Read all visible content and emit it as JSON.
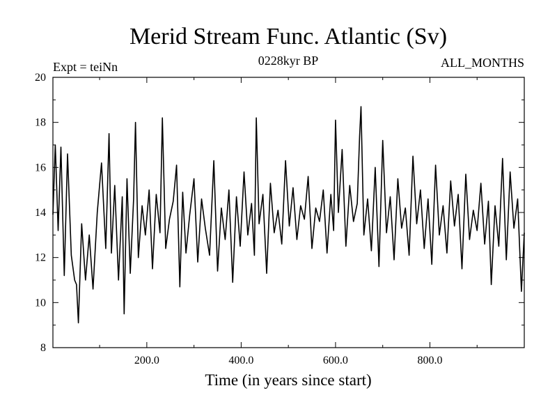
{
  "chart_data": {
    "type": "line",
    "title": "Merid Stream Func. Atlantic (Sv)",
    "subtitle_left": "Expt = teiNn",
    "subtitle_center": "0228kyr BP",
    "subtitle_right": "ALL_MONTHS",
    "xlabel": "Time (in years since start)",
    "ylabel": "",
    "xlim": [
      1,
      1000
    ],
    "ylim": [
      8,
      20
    ],
    "grid": false,
    "xticks": [
      {
        "value": 200,
        "label": "200.0"
      },
      {
        "value": 400,
        "label": "400.0"
      },
      {
        "value": 600,
        "label": "600.0"
      },
      {
        "value": 800,
        "label": "800.0"
      }
    ],
    "yticks": [
      {
        "value": 8,
        "label": "8"
      },
      {
        "value": 10,
        "label": "10"
      },
      {
        "value": 12,
        "label": "12"
      },
      {
        "value": 14,
        "label": "14"
      },
      {
        "value": 16,
        "label": "16"
      },
      {
        "value": 18,
        "label": "18"
      },
      {
        "value": 20,
        "label": "20"
      }
    ],
    "series": [
      {
        "name": "Merid Stream Func. Atlantic",
        "color": "#000000",
        "x": [
          1,
          6,
          12,
          18,
          25,
          32,
          40,
          47,
          51,
          55,
          62,
          70,
          78,
          86,
          95,
          104,
          113,
          120,
          125,
          132,
          140,
          148,
          152,
          158,
          165,
          172,
          176,
          182,
          190,
          197,
          205,
          212,
          220,
          228,
          233,
          240,
          248,
          256,
          263,
          270,
          276,
          283,
          291,
          300,
          308,
          316,
          324,
          333,
          342,
          350,
          358,
          366,
          374,
          382,
          390,
          398,
          406,
          414,
          422,
          428,
          432,
          438,
          446,
          454,
          462,
          470,
          478,
          486,
          494,
          502,
          510,
          518,
          526,
          534,
          542,
          550,
          558,
          566,
          574,
          582,
          590,
          596,
          600,
          606,
          614,
          622,
          630,
          638,
          646,
          651,
          654,
          660,
          668,
          676,
          684,
          692,
          700,
          708,
          716,
          724,
          732,
          740,
          748,
          756,
          764,
          772,
          780,
          788,
          796,
          804,
          812,
          820,
          828,
          836,
          844,
          852,
          860,
          868,
          876,
          884,
          892,
          900,
          908,
          916,
          924,
          930,
          938,
          946,
          954,
          962,
          970,
          978,
          986,
          994,
          1000
        ],
        "values": [
          13.9,
          17.0,
          13.2,
          16.9,
          11.2,
          16.6,
          12.1,
          11.0,
          10.8,
          9.1,
          13.5,
          11.0,
          13.0,
          10.6,
          14.0,
          16.2,
          12.4,
          17.5,
          12.2,
          15.2,
          11.0,
          14.7,
          9.5,
          15.5,
          11.3,
          14.6,
          18.0,
          12.0,
          14.3,
          13.0,
          15.0,
          11.5,
          14.8,
          13.1,
          18.2,
          12.4,
          13.7,
          14.5,
          16.1,
          10.7,
          14.9,
          12.2,
          13.9,
          15.5,
          11.8,
          14.6,
          13.3,
          12.1,
          16.3,
          11.4,
          14.2,
          12.8,
          15.0,
          10.9,
          14.7,
          12.5,
          15.8,
          13.0,
          14.4,
          12.1,
          18.2,
          13.5,
          14.8,
          11.3,
          15.3,
          13.1,
          14.1,
          12.6,
          16.3,
          13.4,
          15.1,
          12.8,
          14.3,
          13.7,
          15.6,
          12.4,
          14.2,
          13.6,
          15.0,
          12.2,
          14.8,
          13.2,
          18.1,
          14.0,
          16.8,
          12.5,
          15.2,
          13.6,
          14.4,
          17.4,
          18.7,
          13.0,
          14.6,
          12.3,
          16.0,
          11.6,
          17.2,
          13.1,
          14.7,
          11.9,
          15.5,
          13.3,
          14.2,
          12.1,
          16.5,
          13.5,
          15.0,
          12.4,
          14.6,
          11.7,
          16.1,
          13.0,
          14.3,
          12.2,
          15.4,
          13.4,
          14.8,
          11.5,
          15.7,
          12.8,
          14.1,
          13.2,
          15.3,
          12.6,
          14.5,
          10.8,
          14.3,
          12.5,
          16.4,
          11.9,
          15.8,
          13.3,
          14.6,
          10.5,
          13.1
        ]
      }
    ]
  }
}
